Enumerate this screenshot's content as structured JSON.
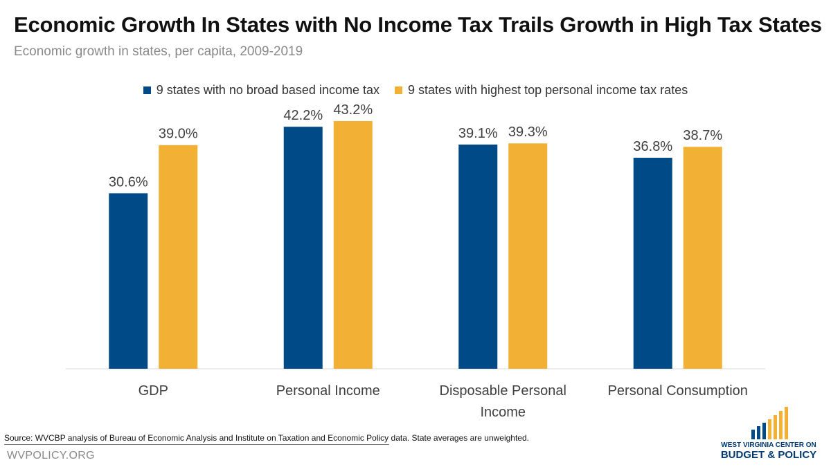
{
  "header": {
    "title": "Economic Growth In States with No Income Tax Trails Growth in High Tax States",
    "subtitle": "Economic growth in states, per capita, 2009-2019"
  },
  "footer": {
    "source": "Source:  WVCBP analysis of Bureau of Economic Analysis and Institute on Taxation and Economic Policy data. State averages are unweighted.",
    "site": "WVPOLICY.ORG"
  },
  "logo": {
    "line1": "WEST VIRGINIA CENTER ON",
    "line2": "BUDGET & POLICY"
  },
  "colors": {
    "series1": "#004b87",
    "series2": "#f2b134",
    "axis": "#d9d9d9"
  },
  "chart_data": {
    "type": "bar",
    "title": "Economic Growth In States with No Income Tax Trails Growth in High Tax States",
    "subtitle": "Economic growth in states, per capita, 2009-2019",
    "categories": [
      [
        "GDP"
      ],
      [
        "Personal Income"
      ],
      [
        "Disposable Personal",
        "Income"
      ],
      [
        "Personal Consumption"
      ]
    ],
    "series": [
      {
        "name": "9 states with no broad based income tax",
        "values": [
          30.6,
          42.2,
          39.1,
          36.8
        ],
        "labels": [
          "30.6%",
          "42.2%",
          "39.1%",
          "36.8%"
        ],
        "color": "#004b87"
      },
      {
        "name": "9 states with highest top personal income tax rates",
        "values": [
          39.0,
          43.2,
          39.3,
          38.7
        ],
        "labels": [
          "39.0%",
          "43.2%",
          "39.3%",
          "38.7%"
        ],
        "color": "#f2b134"
      }
    ],
    "ylim": [
      0,
      45
    ],
    "grid": false,
    "legend": "top-center",
    "data_labels": true
  }
}
